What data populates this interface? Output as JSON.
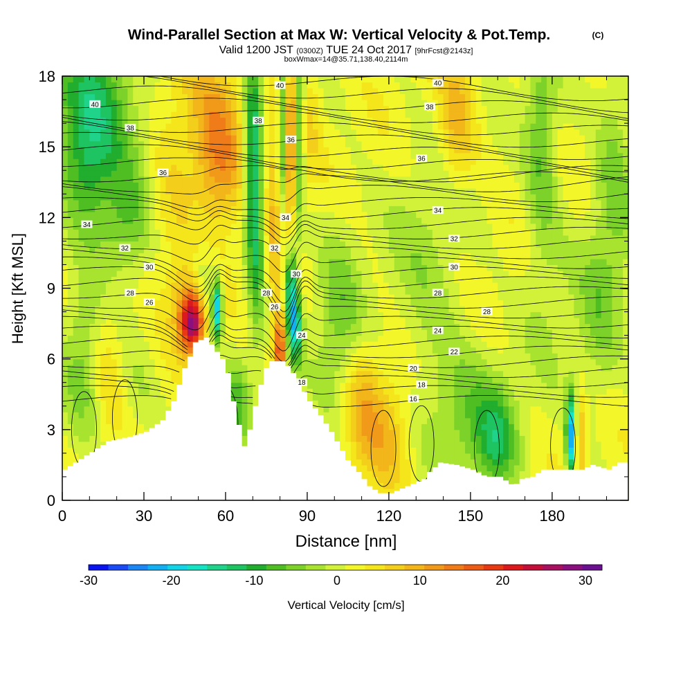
{
  "chart_data": {
    "type": "heatmap",
    "title": "Wind-Parallel Section at Max W: Vertical Velocity & Pot.Temp.",
    "title_mark": "(C)",
    "subtitle": {
      "valid": "Valid 1200 JST",
      "utc": "(0300Z)",
      "date": "TUE 24 Oct 2017",
      "fcst": "[9hrFcst@2143z]"
    },
    "box_info": "boxWmax=14@35.71,138.40,2114m",
    "xlabel": "Distance [nm]",
    "ylabel": "Height [Kft MSL]",
    "xlim": [
      0,
      208
    ],
    "ylim": [
      0,
      18
    ],
    "x_ticks": [
      "0",
      "30",
      "60",
      "90",
      "120",
      "150",
      "180"
    ],
    "y_ticks": [
      "0",
      "3",
      "6",
      "9",
      "12",
      "15",
      "18"
    ],
    "colorbar": {
      "label": "Vertical Velocity [cm/s]",
      "range": [
        -30,
        32
      ],
      "ticks": [
        "-30",
        "-20",
        "-10",
        "0",
        "10",
        "20",
        "30"
      ],
      "colors": [
        "#0a14f0",
        "#1a4bf5",
        "#1c86f5",
        "#12b0f2",
        "#13d3e6",
        "#14e3c4",
        "#1fd38a",
        "#1ec461",
        "#21ad2e",
        "#4fbe23",
        "#7dd22a",
        "#a8e32f",
        "#d2f23a",
        "#f3f72a",
        "#f5e61c",
        "#f3ce1a",
        "#f2b51a",
        "#f19a1a",
        "#ef7c18",
        "#ec5c16",
        "#e73a14",
        "#dc1a1e",
        "#c41038",
        "#a81060",
        "#8a1080",
        "#6b1090"
      ]
    },
    "terrain": [
      [
        0,
        1.3
      ],
      [
        4,
        1.6
      ],
      [
        8,
        1.9
      ],
      [
        12,
        2.2
      ],
      [
        16,
        2.5
      ],
      [
        24,
        2.7
      ],
      [
        30,
        2.9
      ],
      [
        36,
        3.4
      ],
      [
        40,
        4.2
      ],
      [
        44,
        5.6
      ],
      [
        46,
        6.1
      ],
      [
        48,
        6.7
      ],
      [
        52,
        6.9
      ],
      [
        54,
        6.6
      ],
      [
        56,
        6.3
      ],
      [
        58,
        6.0
      ],
      [
        60,
        5.4
      ],
      [
        62,
        4.2
      ],
      [
        64,
        3.2
      ],
      [
        66,
        2.3
      ],
      [
        68,
        3.0
      ],
      [
        70,
        4.0
      ],
      [
        72,
        4.9
      ],
      [
        74,
        5.6
      ],
      [
        76,
        5.9
      ],
      [
        80,
        5.9
      ],
      [
        82,
        5.7
      ],
      [
        84,
        5.4
      ],
      [
        86,
        5.0
      ],
      [
        88,
        4.6
      ],
      [
        90,
        4.2
      ],
      [
        94,
        3.6
      ],
      [
        98,
        2.9
      ],
      [
        100,
        2.5
      ],
      [
        104,
        1.7
      ],
      [
        108,
        1.2
      ],
      [
        112,
        0.6
      ],
      [
        116,
        0.3
      ],
      [
        120,
        0.3
      ],
      [
        124,
        0.5
      ],
      [
        128,
        0.7
      ],
      [
        132,
        0.9
      ],
      [
        134,
        1.2
      ],
      [
        138,
        1.6
      ],
      [
        144,
        1.5
      ],
      [
        150,
        1.3
      ],
      [
        155,
        1.0
      ],
      [
        160,
        1.0
      ],
      [
        165,
        0.6
      ],
      [
        168,
        0.9
      ],
      [
        172,
        1.0
      ],
      [
        176,
        1.3
      ],
      [
        182,
        1.3
      ],
      [
        190,
        1.3
      ],
      [
        194,
        1.5
      ],
      [
        200,
        1.3
      ],
      [
        204,
        1.6
      ],
      [
        208,
        1.6
      ]
    ],
    "w_features": [
      {
        "x": 12,
        "y": 16.5,
        "sx": 10,
        "sy": 2.2,
        "w": -14
      },
      {
        "x": 8,
        "y": 13.5,
        "sx": 6,
        "sy": 1.5,
        "w": -7
      },
      {
        "x": 20,
        "y": 11.5,
        "sx": 8,
        "sy": 1.5,
        "w": -5
      },
      {
        "x": 27,
        "y": 13.5,
        "sx": 6,
        "sy": 2.0,
        "w": -4
      },
      {
        "x": 38,
        "y": 12.0,
        "sx": 6,
        "sy": 2.0,
        "w": 4
      },
      {
        "x": 52,
        "y": 16.0,
        "sx": 10,
        "sy": 2.5,
        "w": 5
      },
      {
        "x": 58,
        "y": 14.5,
        "sx": 6,
        "sy": 2.0,
        "w": 10
      },
      {
        "x": 70,
        "y": 14.5,
        "sx": 2.2,
        "sy": 3.5,
        "w": -14
      },
      {
        "x": 72,
        "y": 10.5,
        "sx": 2.2,
        "sy": 3.0,
        "w": -8
      },
      {
        "x": 78,
        "y": 15.0,
        "sx": 3,
        "sy": 2.5,
        "w": 6
      },
      {
        "x": 81,
        "y": 16.0,
        "sx": 1.5,
        "sy": 3.5,
        "w": -11
      },
      {
        "x": 84,
        "y": 15.0,
        "sx": 1.3,
        "sy": 3.0,
        "w": 15
      },
      {
        "x": 87,
        "y": 15.5,
        "sx": 1.5,
        "sy": 3.0,
        "w": -10
      },
      {
        "x": 91,
        "y": 16.5,
        "sx": 3,
        "sy": 2.0,
        "w": 4
      },
      {
        "x": 84,
        "y": 9.0,
        "sx": 1.5,
        "sy": 1.5,
        "w": -20
      },
      {
        "x": 86,
        "y": 7.3,
        "sx": 1.5,
        "sy": 1.0,
        "w": -16
      },
      {
        "x": 80,
        "y": 6.4,
        "sx": 1.5,
        "sy": 1.2,
        "w": 18
      },
      {
        "x": 78,
        "y": 10.0,
        "sx": 3,
        "sy": 2.0,
        "w": 5
      },
      {
        "x": 57,
        "y": 8.1,
        "sx": 1.3,
        "sy": 0.9,
        "w": -22
      },
      {
        "x": 52,
        "y": 9.2,
        "sx": 3,
        "sy": 1.2,
        "w": -5
      },
      {
        "x": 48,
        "y": 7.6,
        "sx": 3,
        "sy": 0.9,
        "w": 25
      },
      {
        "x": 44,
        "y": 8.5,
        "sx": 4,
        "sy": 1.5,
        "w": 6
      },
      {
        "x": 64,
        "y": 4.0,
        "sx": 3,
        "sy": 1.5,
        "w": -8
      },
      {
        "x": 8,
        "y": 5.5,
        "sx": 5,
        "sy": 2.5,
        "w": -6
      },
      {
        "x": 16,
        "y": 6.0,
        "sx": 4,
        "sy": 2.0,
        "w": 4
      },
      {
        "x": 28,
        "y": 4.5,
        "sx": 5,
        "sy": 1.5,
        "w": -3
      },
      {
        "x": 102,
        "y": 7.5,
        "sx": 6,
        "sy": 3.0,
        "w": -6
      },
      {
        "x": 110,
        "y": 4.0,
        "sx": 5,
        "sy": 2.0,
        "w": 7
      },
      {
        "x": 120,
        "y": 2.5,
        "sx": 6,
        "sy": 2.0,
        "w": 6
      },
      {
        "x": 135,
        "y": 9.0,
        "sx": 10,
        "sy": 4.0,
        "w": -4
      },
      {
        "x": 145,
        "y": 16.0,
        "sx": 5,
        "sy": 2.0,
        "w": 8
      },
      {
        "x": 150,
        "y": 3.5,
        "sx": 10,
        "sy": 2.0,
        "w": -6
      },
      {
        "x": 160,
        "y": 2.5,
        "sx": 5,
        "sy": 1.5,
        "w": -9
      },
      {
        "x": 176,
        "y": 15.5,
        "sx": 4,
        "sy": 3.0,
        "w": -7
      },
      {
        "x": 178,
        "y": 10.0,
        "sx": 6,
        "sy": 3.0,
        "w": -3
      },
      {
        "x": 187,
        "y": 2.7,
        "sx": 1.3,
        "sy": 1.2,
        "w": -24
      },
      {
        "x": 190,
        "y": 2.7,
        "sx": 1.5,
        "sy": 1.3,
        "w": 10
      },
      {
        "x": 197,
        "y": 8.0,
        "sx": 6,
        "sy": 3.0,
        "w": -5
      },
      {
        "x": 203,
        "y": 14.0,
        "sx": 5,
        "sy": 3.0,
        "w": -6
      }
    ],
    "theta_labels": [
      {
        "text": "40",
        "x": 12,
        "y": 16.8
      },
      {
        "text": "38",
        "x": 25,
        "y": 15.8
      },
      {
        "text": "36",
        "x": 37,
        "y": 13.9
      },
      {
        "text": "34",
        "x": 9,
        "y": 11.7
      },
      {
        "text": "32",
        "x": 23,
        "y": 10.7
      },
      {
        "text": "30",
        "x": 32,
        "y": 9.9
      },
      {
        "text": "28",
        "x": 25,
        "y": 8.8
      },
      {
        "text": "26",
        "x": 32,
        "y": 8.4
      },
      {
        "text": "40",
        "x": 80,
        "y": 17.6
      },
      {
        "text": "38",
        "x": 72,
        "y": 16.1
      },
      {
        "text": "36",
        "x": 84,
        "y": 15.3
      },
      {
        "text": "34",
        "x": 82,
        "y": 12.0
      },
      {
        "text": "32",
        "x": 78,
        "y": 10.7
      },
      {
        "text": "30",
        "x": 86,
        "y": 9.6
      },
      {
        "text": "28",
        "x": 75,
        "y": 8.8
      },
      {
        "text": "26",
        "x": 78,
        "y": 8.2
      },
      {
        "text": "24",
        "x": 88,
        "y": 7.0
      },
      {
        "text": "18",
        "x": 88,
        "y": 5.0
      },
      {
        "text": "40",
        "x": 138,
        "y": 17.7
      },
      {
        "text": "38",
        "x": 135,
        "y": 16.7
      },
      {
        "text": "36",
        "x": 132,
        "y": 14.5
      },
      {
        "text": "34",
        "x": 138,
        "y": 12.3
      },
      {
        "text": "32",
        "x": 144,
        "y": 11.1
      },
      {
        "text": "30",
        "x": 144,
        "y": 9.9
      },
      {
        "text": "28",
        "x": 138,
        "y": 8.8
      },
      {
        "text": "28",
        "x": 156,
        "y": 8.0
      },
      {
        "text": "24",
        "x": 138,
        "y": 7.2
      },
      {
        "text": "22",
        "x": 144,
        "y": 6.3
      },
      {
        "text": "20",
        "x": 129,
        "y": 5.6
      },
      {
        "text": "18",
        "x": 132,
        "y": 4.9
      },
      {
        "text": "16",
        "x": 129,
        "y": 4.3
      }
    ]
  }
}
